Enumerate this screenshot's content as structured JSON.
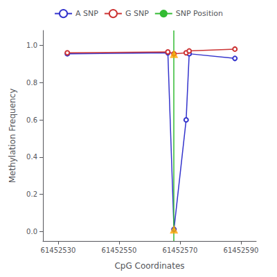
{
  "chart_data": {
    "type": "line",
    "xlabel": "CpG Coordinates",
    "ylabel": "Methylation Frequency",
    "xlim": [
      61452525,
      61452595
    ],
    "ylim": [
      -0.05,
      1.08
    ],
    "xticks": [
      61452530,
      61452550,
      61452570,
      61452590
    ],
    "yticks": [
      {
        "value": 0.0,
        "label": "0.0"
      },
      0.2,
      0.4,
      0.6,
      0.8,
      {
        "value": 1.0,
        "label": "1.0"
      }
    ],
    "grid": false,
    "legend": "top",
    "series": [
      {
        "name": "A SNP",
        "color": "#3333cc",
        "marker": "circle",
        "x": [
          61452533,
          61452566,
          61452568,
          61452572,
          61452573,
          61452588
        ],
        "values": [
          0.955,
          0.96,
          0.012,
          0.6,
          0.955,
          0.93
        ]
      },
      {
        "name": "G SNP",
        "color": "#cc3333",
        "marker": "circle",
        "x": [
          61452533,
          61452566,
          61452568,
          61452572,
          61452573,
          61452588
        ],
        "values": [
          0.96,
          0.965,
          0.955,
          0.96,
          0.97,
          0.98
        ]
      },
      {
        "name": "SNP Position",
        "type": "vline",
        "color": "#33bb33",
        "x": 61452568
      }
    ],
    "snp_markers": {
      "x": [
        61452568,
        61452568
      ],
      "values": [
        0.012,
        0.955
      ],
      "color": "#FFA500",
      "marker": "triangle"
    }
  }
}
